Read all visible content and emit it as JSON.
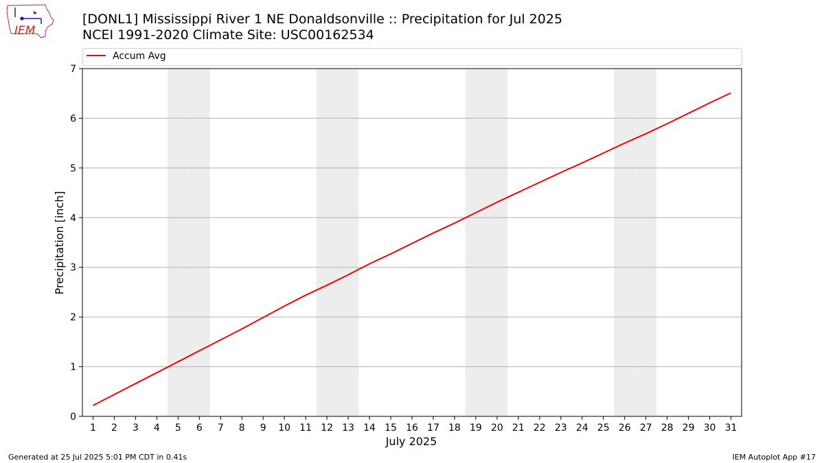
{
  "header": {
    "title_line1": "[DONL1] Mississippi River 1 NE Donaldsonville :: Precipitation for Jul 2025",
    "title_line2": "NCEI 1991-2020 Climate Site: USC00162534",
    "logo_text": "IEM"
  },
  "footer": {
    "generated": "Generated at 25 Jul 2025 5:01 PM CDT in 0.41s",
    "app": "IEM Autoplot App #17"
  },
  "colors": {
    "series": "#ff0000",
    "weekend_shade": "#ededed",
    "grid": "#b0b0b0",
    "logo": "#cc2222"
  },
  "chart_data": {
    "type": "line",
    "title": "[DONL1] Mississippi River 1 NE Donaldsonville :: Precipitation for Jul 2025",
    "subtitle": "NCEI 1991-2020 Climate Site: USC00162534",
    "xlabel": "July 2025",
    "ylabel": "Precipitation [inch]",
    "xlim": [
      0.5,
      31.5
    ],
    "ylim": [
      0,
      7
    ],
    "x_ticks": [
      "1",
      "2",
      "3",
      "4",
      "5",
      "6",
      "7",
      "8",
      "9",
      "10",
      "11",
      "12",
      "13",
      "14",
      "15",
      "16",
      "17",
      "18",
      "19",
      "20",
      "21",
      "22",
      "23",
      "24",
      "25",
      "26",
      "27",
      "28",
      "29",
      "30",
      "31"
    ],
    "y_ticks": [
      "0",
      "1",
      "2",
      "3",
      "4",
      "5",
      "6",
      "7"
    ],
    "grid": "horizontal",
    "legend_position": "top",
    "weekend_days": [
      5,
      6,
      12,
      13,
      19,
      20,
      26,
      27
    ],
    "series": [
      {
        "name": "Accum Avg",
        "x": [
          1,
          2,
          3,
          4,
          5,
          6,
          7,
          8,
          9,
          10,
          11,
          12,
          13,
          14,
          15,
          16,
          17,
          18,
          19,
          20,
          21,
          22,
          23,
          24,
          25,
          26,
          27,
          28,
          29,
          30,
          31
        ],
        "values": [
          0.22,
          0.44,
          0.66,
          0.88,
          1.1,
          1.32,
          1.54,
          1.76,
          1.99,
          2.22,
          2.44,
          2.64,
          2.85,
          3.07,
          3.27,
          3.48,
          3.69,
          3.89,
          4.1,
          4.31,
          4.51,
          4.71,
          4.91,
          5.1,
          5.3,
          5.5,
          5.69,
          5.89,
          6.1,
          6.31,
          6.51
        ]
      }
    ]
  }
}
